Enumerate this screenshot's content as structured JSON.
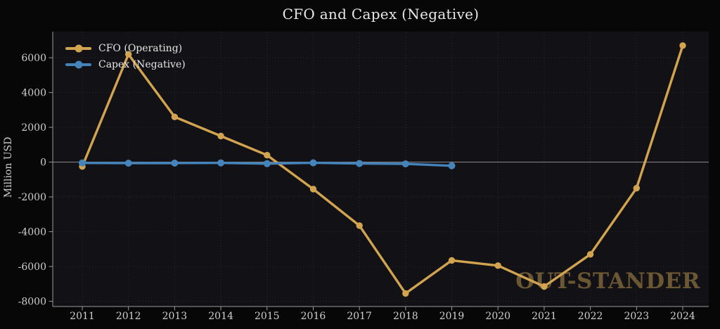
{
  "watermark": "OUT-STANDER",
  "colors": {
    "figure_bg": "#070708",
    "plot_bg": "#121216",
    "grid": "#2a2a2f",
    "zero_line": "#8d8d91",
    "axis": "#9a9a9e",
    "tick_text": "#cfcfcf",
    "title_text": "#e9e9e9",
    "watermark": "#6b5733"
  },
  "chart_data": {
    "type": "line",
    "title": "CFO and Capex (Negative)",
    "xlabel": "",
    "ylabel": "Million USD",
    "categories": [
      "2011",
      "2012",
      "2013",
      "2014",
      "2015",
      "2016",
      "2017",
      "2018",
      "2019",
      "2020",
      "2021",
      "2022",
      "2023",
      "2024"
    ],
    "series": [
      {
        "name": "CFO (Operating)",
        "color": "#d2a44f",
        "values": [
          -250,
          6200,
          2600,
          1500,
          400,
          -1550,
          -3650,
          -7550,
          -5650,
          -5950,
          -7150,
          -5300,
          -1500,
          6700
        ]
      },
      {
        "name": "Capex (Negative)",
        "color": "#4484bb",
        "values": [
          -50,
          -60,
          -55,
          -45,
          -90,
          -40,
          -80,
          -100,
          -210,
          null,
          null,
          null,
          null,
          null
        ]
      }
    ],
    "ylim": [
      -8300,
      7500
    ],
    "yticks": [
      6000,
      4000,
      2000,
      0,
      -2000,
      -4000,
      -6000,
      -8000
    ],
    "grid": true,
    "zero_line": true,
    "legend_position": "upper-left",
    "marker": "circle"
  }
}
